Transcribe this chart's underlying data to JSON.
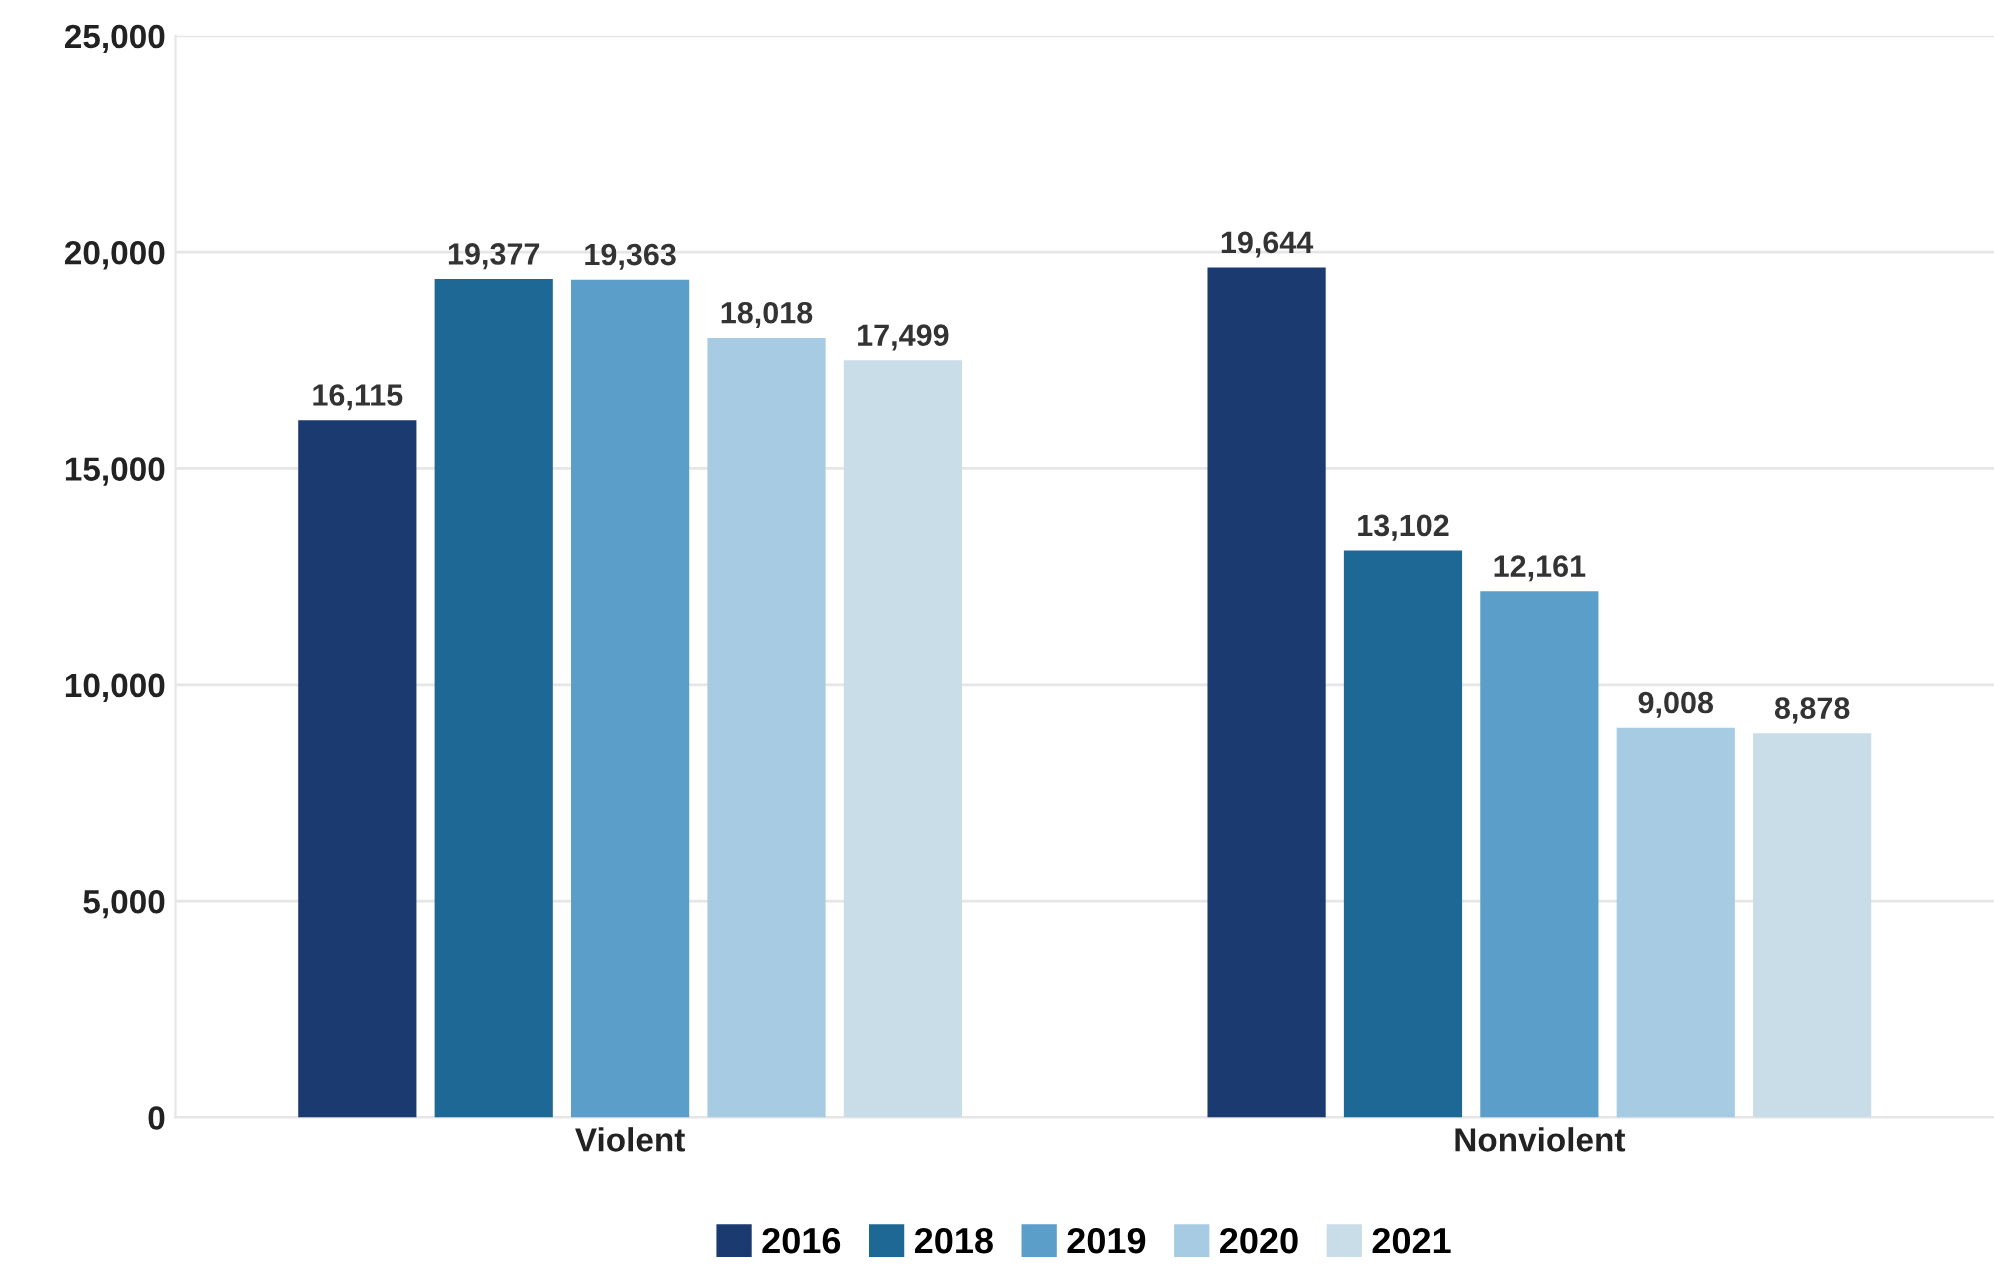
{
  "chart_data": {
    "type": "bar",
    "categories": [
      "Violent",
      "Nonviolent"
    ],
    "series": [
      {
        "name": "2016",
        "color": "#1b3a6f",
        "values": [
          16115,
          19644
        ],
        "value_labels": [
          "16,115",
          "19,644"
        ]
      },
      {
        "name": "2018",
        "color": "#1d6895",
        "values": [
          19377,
          13102
        ],
        "value_labels": [
          "19,377",
          "13,102"
        ]
      },
      {
        "name": "2019",
        "color": "#5b9ec9",
        "values": [
          19363,
          12161
        ],
        "value_labels": [
          "19,363",
          "12,161"
        ]
      },
      {
        "name": "2020",
        "color": "#a6cbe2",
        "values": [
          18018,
          9008
        ],
        "value_labels": [
          "18,018",
          "9,008"
        ]
      },
      {
        "name": "2021",
        "color": "#c9dde9",
        "values": [
          17499,
          8878
        ],
        "value_labels": [
          "17,499",
          "8,878"
        ]
      }
    ],
    "ylim": [
      0,
      25000
    ],
    "yticks": [
      {
        "value": 0,
        "label": "0"
      },
      {
        "value": 5000,
        "label": "5,000"
      },
      {
        "value": 10000,
        "label": "10,000"
      },
      {
        "value": 15000,
        "label": "15,000"
      },
      {
        "value": 20000,
        "label": "20,000"
      },
      {
        "value": 25000,
        "label": "25,000"
      }
    ],
    "grid": "y",
    "legend": "bottom"
  }
}
